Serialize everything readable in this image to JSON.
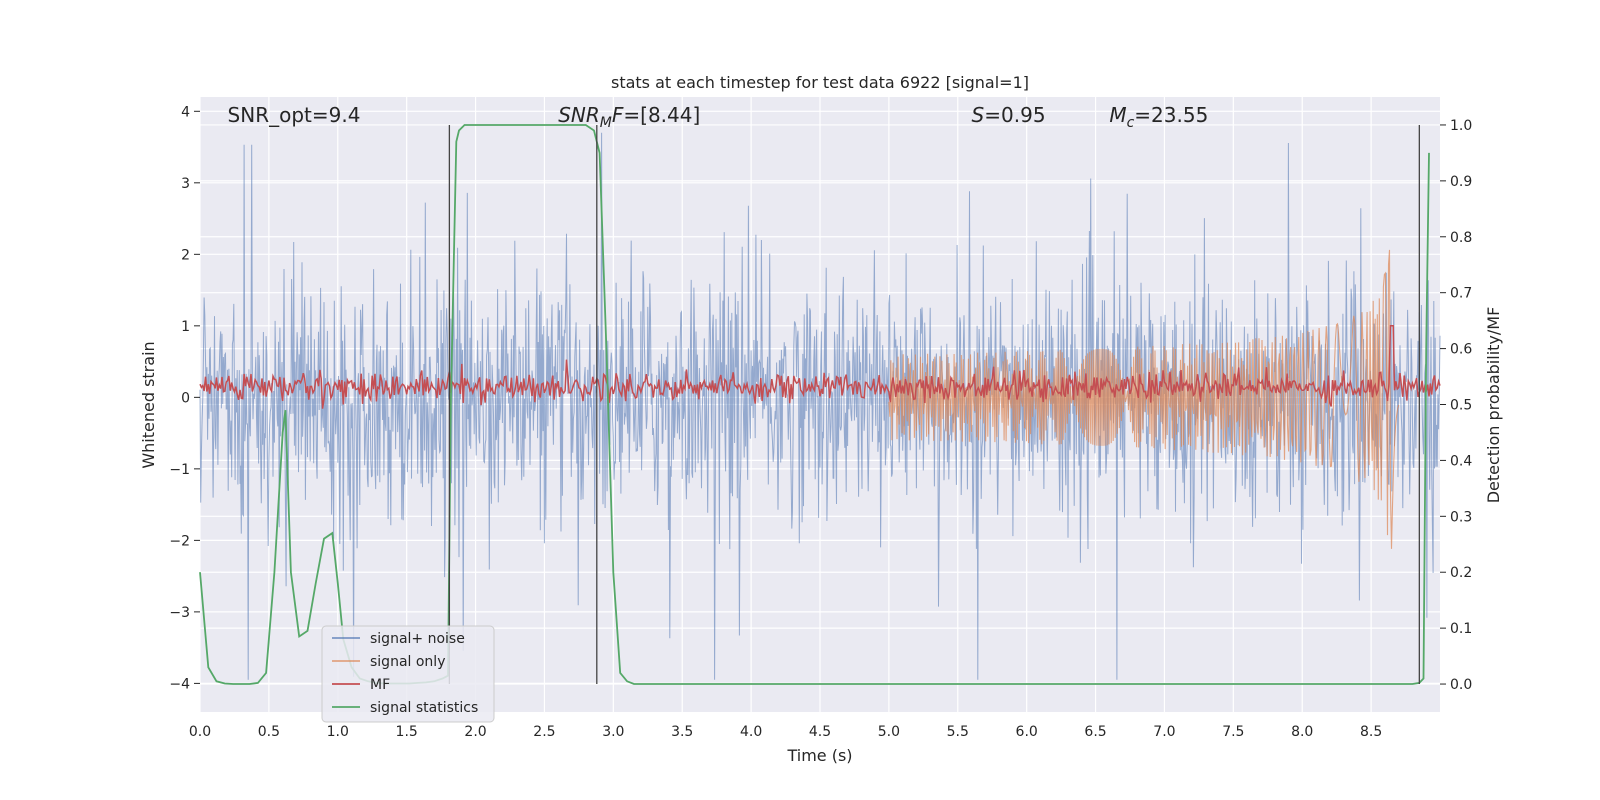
{
  "chart_data": {
    "type": "line",
    "title": "stats at each timestep for test data 6922 [signal=1]",
    "xlabel": "Time (s)",
    "ylabel": "Whitened strain",
    "ylabel_right": "Detection probability/MF",
    "xlim": [
      0.0,
      9.0
    ],
    "ylim": [
      -4.4,
      4.2
    ],
    "ylim_right": [
      -0.05,
      1.05
    ],
    "xticks": [
      "0.0",
      "0.5",
      "1.0",
      "1.5",
      "2.0",
      "2.5",
      "3.0",
      "3.5",
      "4.0",
      "4.5",
      "5.0",
      "5.5",
      "6.0",
      "6.5",
      "7.0",
      "7.5",
      "8.0",
      "8.5"
    ],
    "xtick_values": [
      0.0,
      0.5,
      1.0,
      1.5,
      2.0,
      2.5,
      3.0,
      3.5,
      4.0,
      4.5,
      5.0,
      5.5,
      6.0,
      6.5,
      7.0,
      7.5,
      8.0,
      8.5
    ],
    "yticks_left": [
      "4",
      "3",
      "2",
      "1",
      "0",
      "−1",
      "−2",
      "−3",
      "−4"
    ],
    "ytick_values_left": [
      4,
      3,
      2,
      1,
      0,
      -1,
      -2,
      -3,
      -4
    ],
    "yticks_right": [
      "1.0",
      "0.9",
      "0.8",
      "0.7",
      "0.6",
      "0.5",
      "0.4",
      "0.3",
      "0.2",
      "0.1",
      "0.0"
    ],
    "ytick_values_right": [
      1.0,
      0.9,
      0.8,
      0.7,
      0.6,
      0.5,
      0.4,
      0.3,
      0.2,
      0.1,
      0.0
    ],
    "grid": true,
    "annotations": [
      {
        "text": "SNR_opt=9.4",
        "x": 0.2,
        "y": 3.95
      },
      {
        "text": "SNR_MF=[8.44]",
        "x": 2.6,
        "y": 3.95
      },
      {
        "text": "S=0.95",
        "x": 5.6,
        "y": 3.95
      },
      {
        "text": "M_c=23.55",
        "x": 6.6,
        "y": 3.95
      }
    ],
    "vertical_lines": [
      1.81,
      2.88,
      8.85
    ],
    "series": [
      {
        "name": "signal+ noise",
        "color": "#4c72b0",
        "kind": "noise",
        "amplitude": 1.0,
        "x_range": [
          0.0,
          9.0
        ]
      },
      {
        "name": "signal only",
        "color": "#dd8452",
        "kind": "chirp",
        "peak_time": 8.65,
        "peak_amplitude": 2.2
      },
      {
        "name": "MF",
        "color": "#c44e52",
        "kind": "mf_noise",
        "center": 0.15,
        "spread": 0.1
      },
      {
        "name": "signal statistics",
        "color": "#55a868",
        "axis": "right",
        "x": [
          0.0,
          0.06,
          0.12,
          0.18,
          0.24,
          0.3,
          0.36,
          0.42,
          0.48,
          0.54,
          0.6,
          0.62,
          0.66,
          0.72,
          0.78,
          0.84,
          0.9,
          0.96,
          1.0,
          1.04,
          1.1,
          1.16,
          1.22,
          1.28,
          1.34,
          1.4,
          1.46,
          1.52,
          1.58,
          1.64,
          1.7,
          1.76,
          1.8,
          1.82,
          1.86,
          1.88,
          1.92,
          2.0,
          2.3,
          2.6,
          2.8,
          2.86,
          2.9,
          2.95,
          3.0,
          3.05,
          3.1,
          3.15,
          3.5,
          4.0,
          5.0,
          6.0,
          7.0,
          8.0,
          8.5,
          8.8,
          8.85,
          8.88,
          8.9,
          8.92
        ],
        "y": [
          0.2,
          0.03,
          0.005,
          0.001,
          0.0,
          0.0,
          0.0,
          0.002,
          0.02,
          0.2,
          0.45,
          0.49,
          0.2,
          0.085,
          0.095,
          0.18,
          0.26,
          0.27,
          0.18,
          0.08,
          0.03,
          0.01,
          0.005,
          0.002,
          0.001,
          0.001,
          0.001,
          0.001,
          0.002,
          0.003,
          0.005,
          0.01,
          0.015,
          0.5,
          0.97,
          0.99,
          1.0,
          1.0,
          1.0,
          1.0,
          1.0,
          0.99,
          0.95,
          0.6,
          0.2,
          0.02,
          0.005,
          0.0,
          0.0,
          0.0,
          0.0,
          0.0,
          0.0,
          0.0,
          0.0,
          0.0,
          0.002,
          0.01,
          0.6,
          0.95
        ]
      }
    ],
    "legend": {
      "position": "lower-left",
      "entries": [
        "signal+ noise",
        "signal only",
        "MF",
        "signal statistics"
      ]
    }
  }
}
